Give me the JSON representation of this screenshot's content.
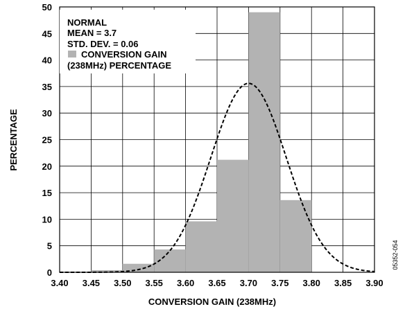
{
  "chart_data": {
    "type": "bar",
    "title": "",
    "xlabel": "CONVERSION GAIN (238MHz)",
    "ylabel": "PERCENTAGE",
    "xlim": [
      3.4,
      3.9
    ],
    "ylim": [
      0,
      50
    ],
    "x_ticks": [
      "3.40",
      "3.45",
      "3.50",
      "3.55",
      "3.60",
      "3.65",
      "3.70",
      "3.75",
      "3.80",
      "3.85",
      "3.90"
    ],
    "y_ticks": [
      "0",
      "5",
      "10",
      "15",
      "20",
      "25",
      "30",
      "35",
      "40",
      "45",
      "50"
    ],
    "grid": true,
    "bins": [
      {
        "start": 3.45,
        "end": 3.5,
        "value": 0.4
      },
      {
        "start": 3.5,
        "end": 3.55,
        "value": 1.6
      },
      {
        "start": 3.55,
        "end": 3.6,
        "value": 4.3
      },
      {
        "start": 3.6,
        "end": 3.65,
        "value": 9.6
      },
      {
        "start": 3.65,
        "end": 3.7,
        "value": 21.2
      },
      {
        "start": 3.7,
        "end": 3.75,
        "value": 49.0
      },
      {
        "start": 3.75,
        "end": 3.8,
        "value": 13.6
      }
    ],
    "normal_curve": {
      "mean": 3.7,
      "std_dev": 0.06,
      "peak": 35.6
    },
    "legend": {
      "placement": "top-left",
      "lines": [
        "NORMAL",
        "MEAN = 3.7",
        "STD. DEV. = 0.06"
      ],
      "bar_label_line1": "CONVERSION GAIN",
      "bar_label_line2": "(238MHz) PERCENTAGE"
    },
    "figure_id": "05352-054",
    "colors": {
      "bar": "#b3b3b3",
      "grid": "#000000",
      "curve": "#000000"
    }
  }
}
